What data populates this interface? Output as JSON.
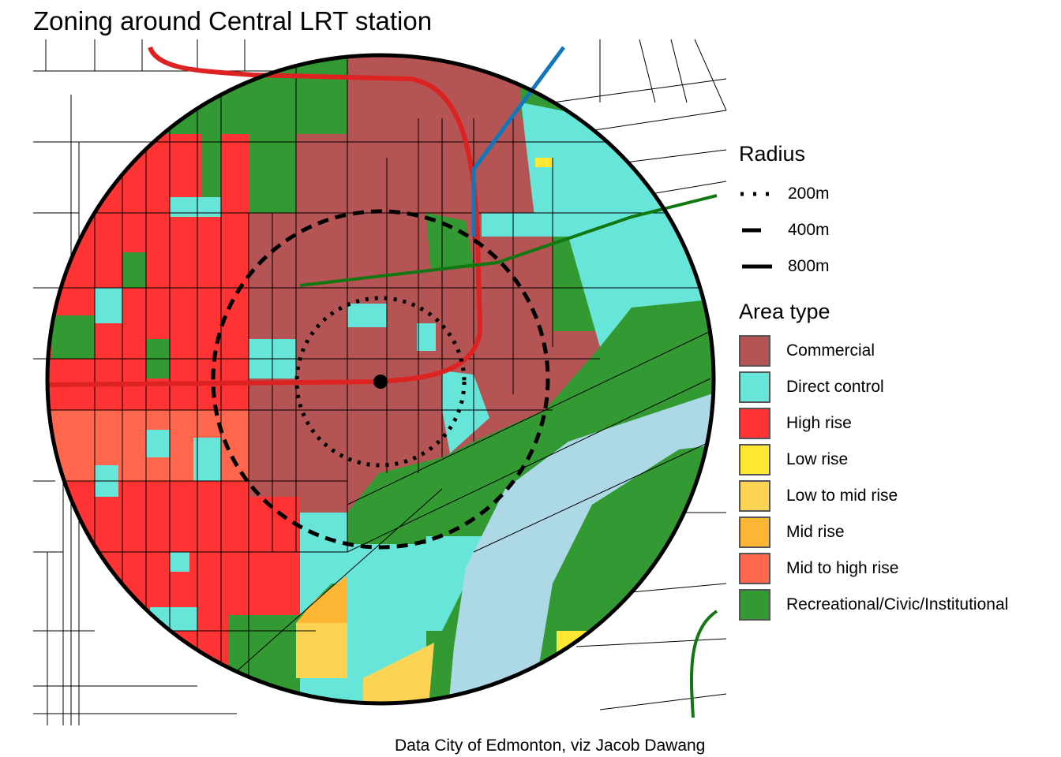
{
  "title": "Zoning around Central LRT station",
  "caption": "Data City of Edmonton, viz Jacob Dawang",
  "legend": {
    "radius_title": "Radius",
    "radius_items": [
      {
        "label": "200m",
        "style": "dotted"
      },
      {
        "label": "400m",
        "style": "dashed"
      },
      {
        "label": "800m",
        "style": "solid"
      }
    ],
    "area_title": "Area type",
    "area_items": [
      {
        "label": "Commercial",
        "color": "#B55454"
      },
      {
        "label": "Direct control",
        "color": "#66E5D8"
      },
      {
        "label": "High rise",
        "color": "#FF3333"
      },
      {
        "label": "Low rise",
        "color": "#FFE733"
      },
      {
        "label": "Low to mid rise",
        "color": "#FDD354"
      },
      {
        "label": "Mid rise",
        "color": "#FDB633"
      },
      {
        "label": "Mid to high rise",
        "color": "#FF664D"
      },
      {
        "label": "Recreational/Civic/Institutional",
        "color": "#339933"
      }
    ]
  },
  "colors": {
    "river": "#ADD8E6",
    "lrt_red": "#DD2222",
    "lrt_blue": "#1177BB",
    "lrt_green": "#117711"
  }
}
